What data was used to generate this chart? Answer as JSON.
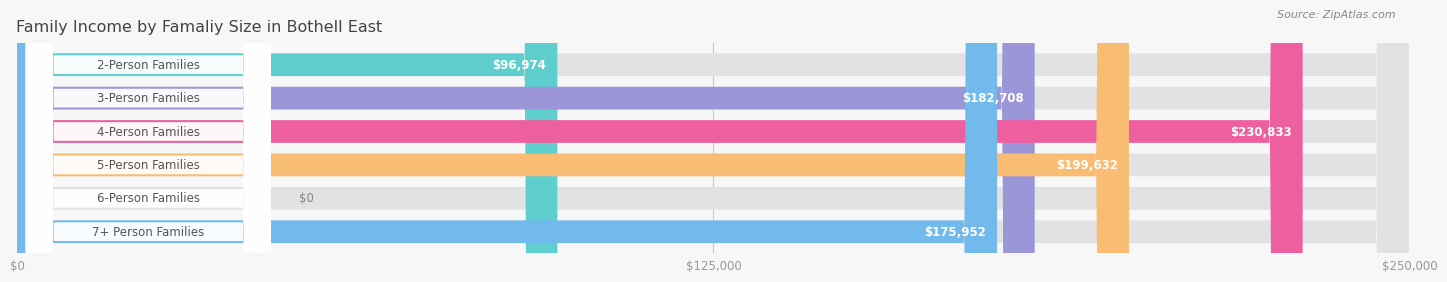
{
  "title": "Family Income by Famaliy Size in Bothell East",
  "source": "Source: ZipAtlas.com",
  "categories": [
    "2-Person Families",
    "3-Person Families",
    "4-Person Families",
    "5-Person Families",
    "6-Person Families",
    "7+ Person Families"
  ],
  "values": [
    96974,
    182708,
    230833,
    199632,
    0,
    175952
  ],
  "max_value": 250000,
  "bar_colors": [
    "#5ECECE",
    "#9B96D8",
    "#EE5FA0",
    "#F8BC72",
    "#F5A8B8",
    "#72B9EC"
  ],
  "label_values": [
    "$96,974",
    "$182,708",
    "$230,833",
    "$199,632",
    "$0",
    "$175,952"
  ],
  "x_ticks": [
    0,
    125000,
    250000
  ],
  "x_tick_labels": [
    "$0",
    "$125,000",
    "$250,000"
  ],
  "background_color": "#F7F7F7",
  "bar_bg_color": "#E2E2E2",
  "title_fontsize": 11.5,
  "label_fontsize": 8.5,
  "value_fontsize": 8.5,
  "source_fontsize": 8
}
